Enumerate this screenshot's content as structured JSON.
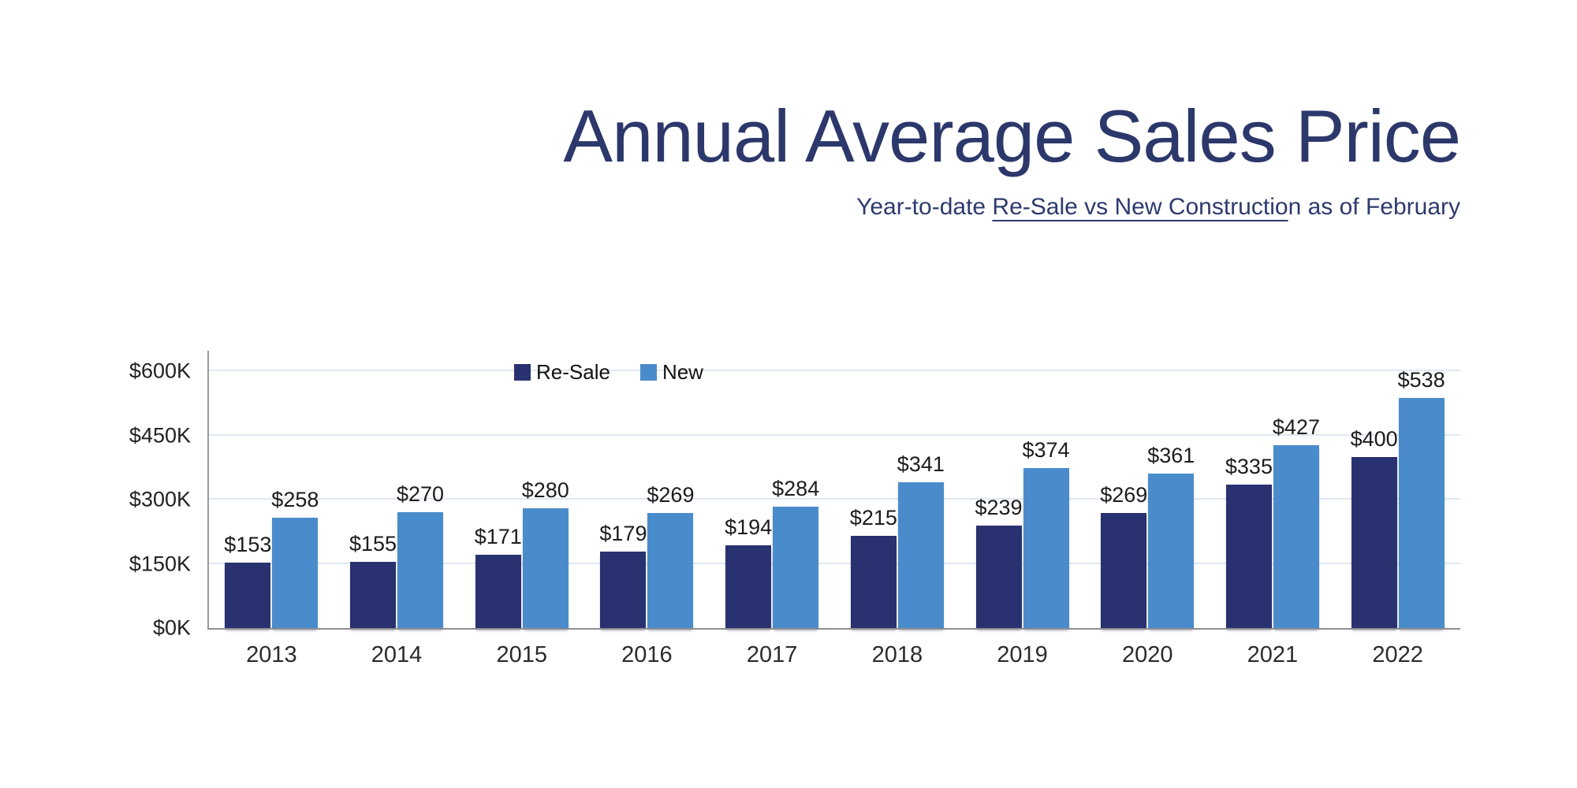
{
  "chart_data": {
    "type": "bar",
    "title": "Annual Average Sales Price",
    "subtitle": "Year-to-date Re-Sale vs New Construction as of February",
    "subtitle_segments": {
      "prefix": "Year-to-date ",
      "underlined": "Re-Sale vs New Constructio",
      "suffix": "n as of February"
    },
    "categories": [
      "2013",
      "2014",
      "2015",
      "2016",
      "2017",
      "2018",
      "2019",
      "2020",
      "2021",
      "2022"
    ],
    "series": [
      {
        "name": "Re-Sale",
        "color": "#2a3170",
        "values": [
          153,
          155,
          171,
          179,
          194,
          215,
          239,
          269,
          335,
          400
        ],
        "display_labels": [
          "$153",
          "$155",
          "$171",
          "$179",
          "$194",
          "$215",
          "$239",
          "$269",
          "$335",
          "$400"
        ]
      },
      {
        "name": "New",
        "color": "#4a8ccb",
        "values": [
          258,
          270,
          280,
          269,
          284,
          341,
          374,
          361,
          427,
          538
        ],
        "display_labels": [
          "$258",
          "$270",
          "$280",
          "$269",
          "$284",
          "$341",
          "$374",
          "$361",
          "$427",
          "$538"
        ]
      }
    ],
    "y_axis": {
      "max": 600,
      "ticks": [
        {
          "label": "$0K",
          "value": 0
        },
        {
          "label": "$150K",
          "value": 150
        },
        {
          "label": "$300K",
          "value": 300
        },
        {
          "label": "$450K",
          "value": 450
        },
        {
          "label": "$600K",
          "value": 600
        }
      ]
    },
    "ylim": [
      0,
      600
    ],
    "grid": true,
    "legend_position": "top-inside",
    "colors": {
      "title": "#2c386b",
      "resale_bar": "#2a3170",
      "new_bar": "#4a8ccb",
      "gridline": "#dfe8f2",
      "axis_line": "#9a9aa2",
      "baseline": "#8d8d95",
      "data_label": "#1c1c1c"
    }
  }
}
